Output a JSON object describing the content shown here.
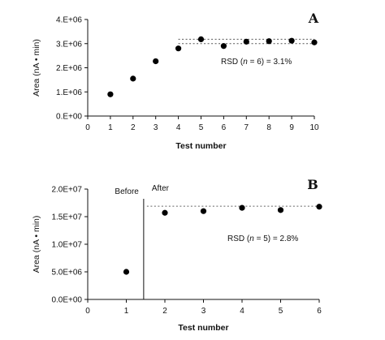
{
  "chart_data": [
    {
      "type": "scatter",
      "panel_label": "A",
      "x": [
        1,
        2,
        3,
        4,
        5,
        6,
        7,
        8,
        9,
        10
      ],
      "y": [
        900000,
        1550000,
        2270000,
        2800000,
        3180000,
        2900000,
        3080000,
        3100000,
        3120000,
        3050000
      ],
      "xlabel": "Test number",
      "ylabel": "Area (nA • min)",
      "xlim": [
        0,
        10
      ],
      "ylim": [
        0,
        4000000
      ],
      "xticks": [
        "0",
        "1",
        "2",
        "3",
        "4",
        "5",
        "6",
        "7",
        "8",
        "9",
        "10"
      ],
      "yticks": [
        "0.E+00",
        "1.E+06",
        "2.E+06",
        "3.E+06",
        "4.E+06"
      ],
      "annotation": {
        "before": "RSD (",
        "n": "n",
        "after": " = 6) = 3.1%"
      },
      "dotted_band": {
        "x_range": [
          4,
          10
        ],
        "y_values": [
          3180000,
          3000000
        ]
      },
      "grid": false
    },
    {
      "type": "scatter",
      "panel_label": "B",
      "x": [
        1,
        2,
        3,
        4,
        5,
        6
      ],
      "y": [
        5000000,
        15700000,
        16000000,
        16600000,
        16200000,
        16800000
      ],
      "xlabel": "Test number",
      "ylabel": "Area (nA • min)",
      "xlim": [
        0,
        6
      ],
      "ylim": [
        0,
        20000000
      ],
      "xticks": [
        "0",
        "1",
        "2",
        "3",
        "4",
        "5",
        "6"
      ],
      "yticks": [
        "0.0E+00",
        "5.0E+06",
        "1.0E+07",
        "1.5E+07",
        "2.0E+07"
      ],
      "annotation": {
        "before": "RSD (",
        "n": "n",
        "after": " = 5) = 2.8%"
      },
      "region_labels": {
        "before": "Before",
        "after": "After"
      },
      "divider_x": 1.45,
      "dotted_line": {
        "x_range": [
          1.45,
          6
        ],
        "y": 16900000
      },
      "grid": false
    }
  ]
}
